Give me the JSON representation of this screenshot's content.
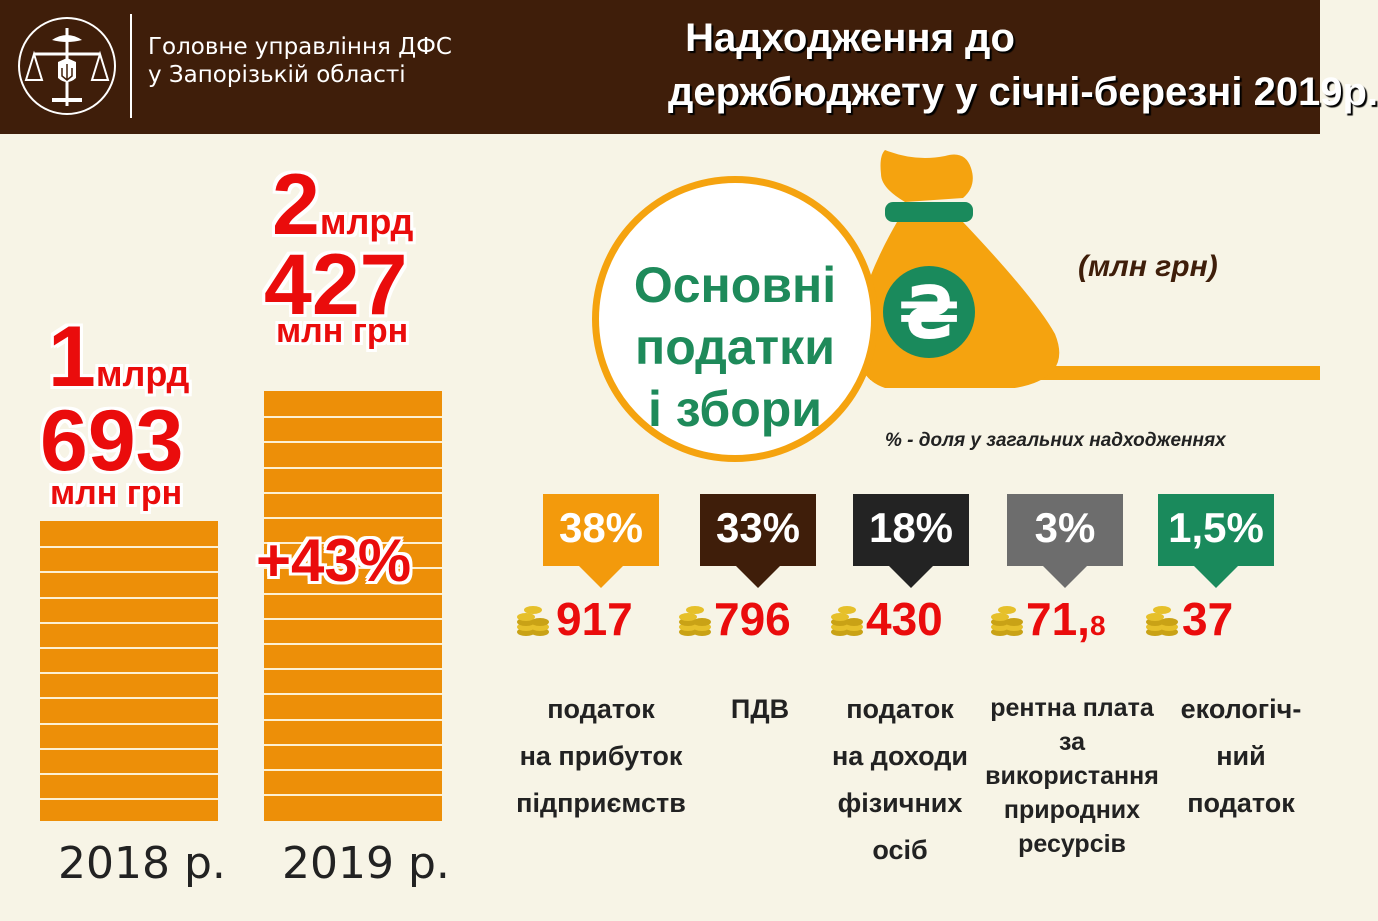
{
  "header": {
    "org_line1": "Головне управління ДФС",
    "org_line2": "у Запорізькій області",
    "title_line1": "Надходження до",
    "title_line2": "держбюджету у січні-березні 2019р.",
    "background": "#3f1e0a"
  },
  "chart_data": {
    "type": "bar",
    "categories": [
      "2018 р.",
      "2019 р."
    ],
    "values": [
      1693,
      2427
    ],
    "unit": "млн грн",
    "value_labels": [
      {
        "billions": "1",
        "billions_unit": "млрд",
        "millions": "693",
        "unit": "млн грн"
      },
      {
        "billions": "2",
        "billions_unit": "млрд",
        "millions": "427",
        "unit": "млн грн"
      }
    ],
    "growth_label": "+43%",
    "bar_color": "#ed8f08"
  },
  "taxes": {
    "heading_lines": [
      "Основні",
      "податки",
      "і збори"
    ],
    "unit_note": "(млн грн)",
    "share_note": "% - доля у загальних надходженнях",
    "currency_symbol": "₴",
    "items": [
      {
        "percent": "38%",
        "amount_main": "917",
        "amount_small": "",
        "label_lines": [
          "податок",
          "на прибуток",
          "підприємств"
        ],
        "color": "#f39a0c"
      },
      {
        "percent": "33%",
        "amount_main": "796",
        "amount_small": "",
        "label_lines": [
          "ПДВ"
        ],
        "color": "#3f1e0a"
      },
      {
        "percent": "18%",
        "amount_main": "430",
        "amount_small": "",
        "label_lines": [
          "податок",
          "на доходи",
          "фізичних",
          "осіб"
        ],
        "color": "#232323"
      },
      {
        "percent": "3%",
        "amount_main": "71,",
        "amount_small": "8",
        "label_lines": [
          "рентна плата",
          "за",
          "використання",
          "природних",
          "ресурсів"
        ],
        "color": "#6d6d6d"
      },
      {
        "percent": "1,5%",
        "amount_main": "37",
        "amount_small": "",
        "label_lines": [
          "екологіч-",
          "ний",
          "податок"
        ],
        "color": "#1a8a5c"
      }
    ]
  },
  "icons": [
    "emblem-icon",
    "money-bag-icon",
    "coins-icon"
  ]
}
